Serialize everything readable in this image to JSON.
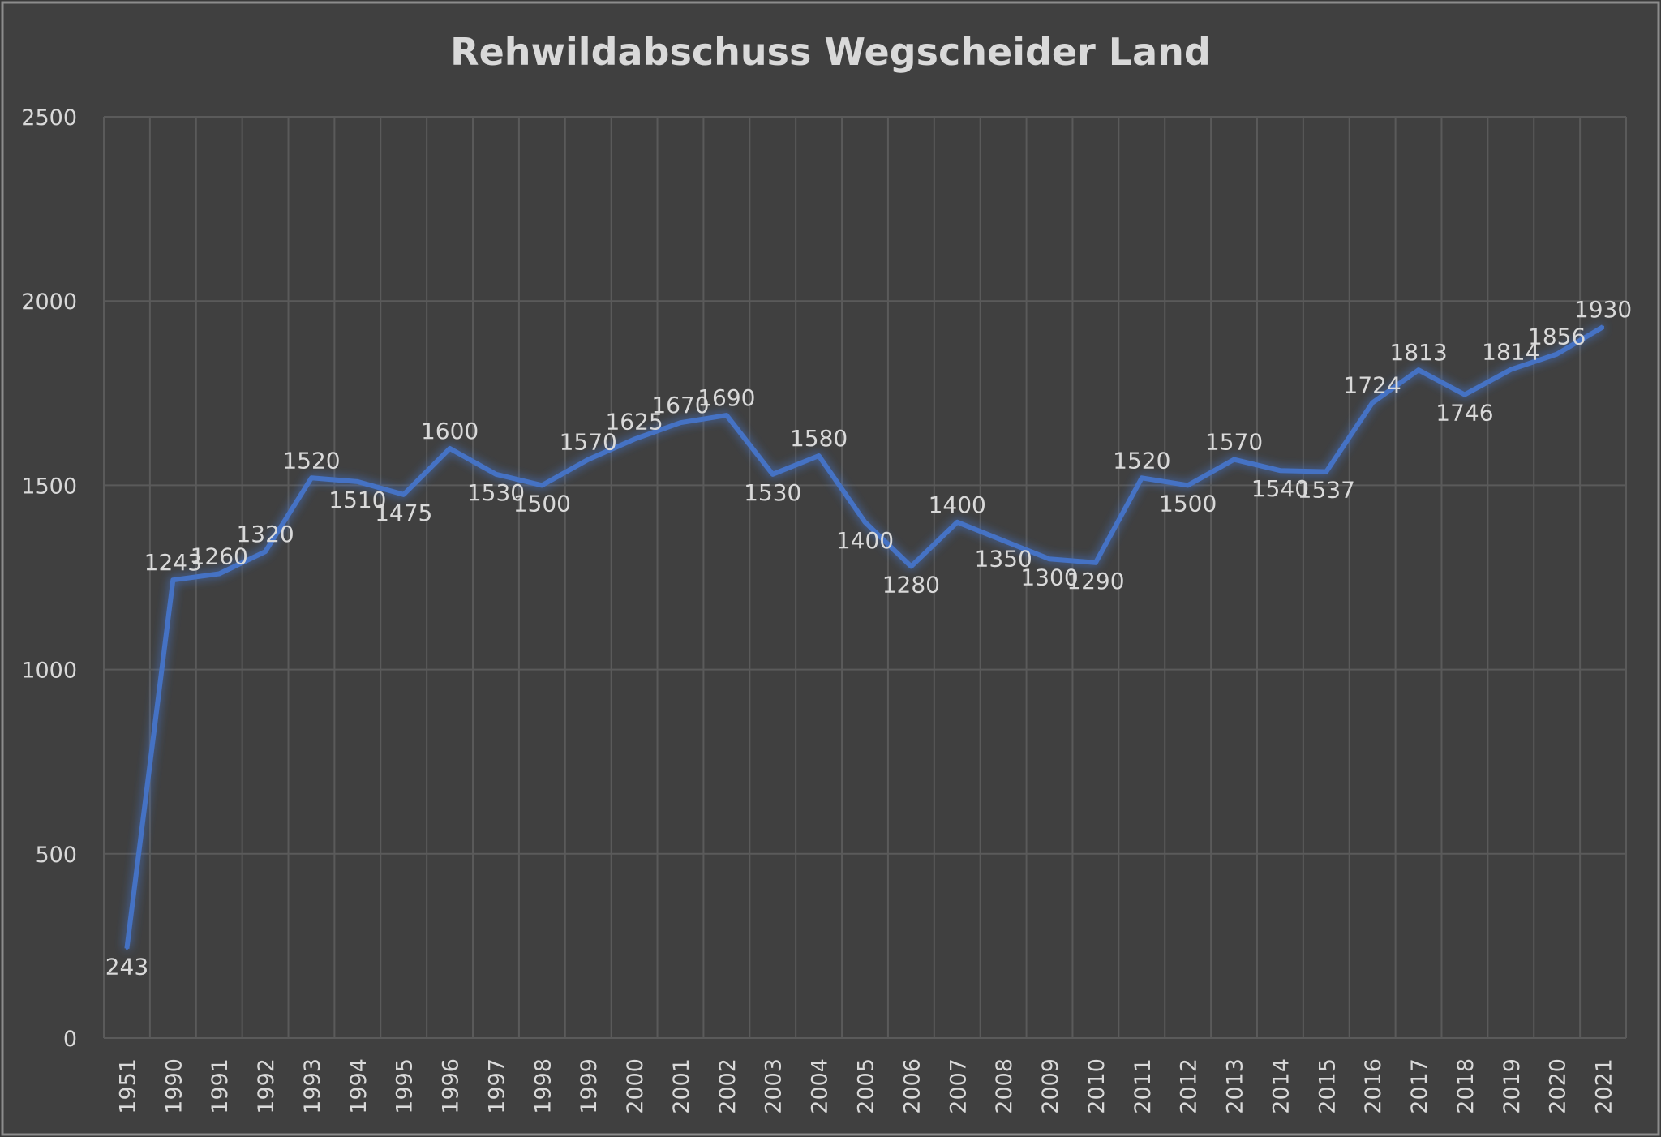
{
  "chart_data": {
    "type": "line",
    "title": "Rehwildabschuss Wegscheider Land",
    "xlabel": "",
    "ylabel": "",
    "ylim": [
      0,
      2500
    ],
    "yticks": [
      0,
      500,
      1000,
      1500,
      2000,
      2500
    ],
    "grid": true,
    "categories": [
      "1951",
      "1990",
      "1991",
      "1992",
      "1993",
      "1994",
      "1995",
      "1996",
      "1997",
      "1998",
      "1999",
      "2000",
      "2001",
      "2002",
      "2003",
      "2004",
      "2005",
      "2006",
      "2007",
      "2008",
      "2009",
      "2010",
      "2011",
      "2012",
      "2013",
      "2014",
      "2015",
      "2016",
      "2017",
      "2018",
      "2019",
      "2020",
      "2021"
    ],
    "series": [
      {
        "values": [
          243,
          1243,
          1260,
          1320,
          1520,
          1510,
          1475,
          1600,
          1530,
          1500,
          1570,
          1625,
          1670,
          1690,
          1530,
          1580,
          1400,
          1280,
          1400,
          1350,
          1300,
          1290,
          1520,
          1500,
          1570,
          1540,
          1537,
          1724,
          1813,
          1746,
          1814,
          1856,
          1930
        ],
        "color": "#4472c4"
      }
    ],
    "data_labels": [
      "243",
      "1243",
      "1260",
      "1320",
      "1520",
      "1510",
      "1475",
      "1600",
      "1530",
      "1500",
      "1570",
      "1625",
      "1670",
      "1690",
      "1530",
      "1580",
      "1400",
      "1280",
      "1400",
      "1350",
      "1300",
      "1290",
      "1520",
      "1500",
      "1570",
      "1540",
      "1537",
      "1724",
      "1813",
      "1746",
      "1814",
      "1856",
      "1930"
    ]
  },
  "colors": {
    "background": "#404040",
    "border": "#8c8c8c",
    "grid": "#5a5a5a",
    "text": "#d9d9d9",
    "line": "#4472c4"
  }
}
